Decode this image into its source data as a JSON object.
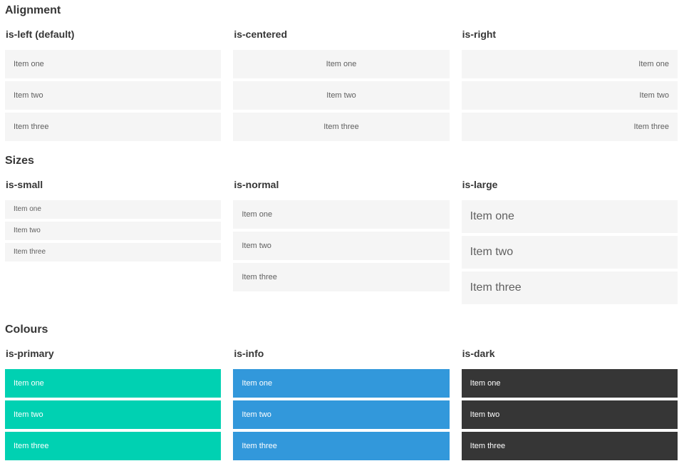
{
  "sections": [
    {
      "title": "Alignment",
      "groups": [
        {
          "label": "is-left (default)",
          "items": [
            "Item one",
            "Item two",
            "Item three"
          ]
        },
        {
          "label": "is-centered",
          "items": [
            "Item one",
            "Item two",
            "Item three"
          ]
        },
        {
          "label": "is-right",
          "items": [
            "Item one",
            "Item two",
            "Item three"
          ]
        }
      ]
    },
    {
      "title": "Sizes",
      "groups": [
        {
          "label": "is-small",
          "items": [
            "Item one",
            "Item two",
            "Item three"
          ]
        },
        {
          "label": "is-normal",
          "items": [
            "Item one",
            "Item two",
            "Item three"
          ]
        },
        {
          "label": "is-large",
          "items": [
            "Item one",
            "Item two",
            "Item three"
          ]
        }
      ]
    },
    {
      "title": "Colours",
      "groups": [
        {
          "label": "is-primary",
          "items": [
            "Item one",
            "Item two",
            "Item three"
          ]
        },
        {
          "label": "is-info",
          "items": [
            "Item one",
            "Item two",
            "Item three"
          ]
        },
        {
          "label": "is-dark",
          "items": [
            "Item one",
            "Item two",
            "Item three"
          ]
        }
      ]
    }
  ],
  "colors": {
    "primary": "#00d1b2",
    "info": "#3298db",
    "dark": "#363636",
    "item_bg": "#f5f5f5",
    "item_text": "#5f5f5f",
    "heading_text": "#363636",
    "colored_item_text": "#ffffff"
  }
}
